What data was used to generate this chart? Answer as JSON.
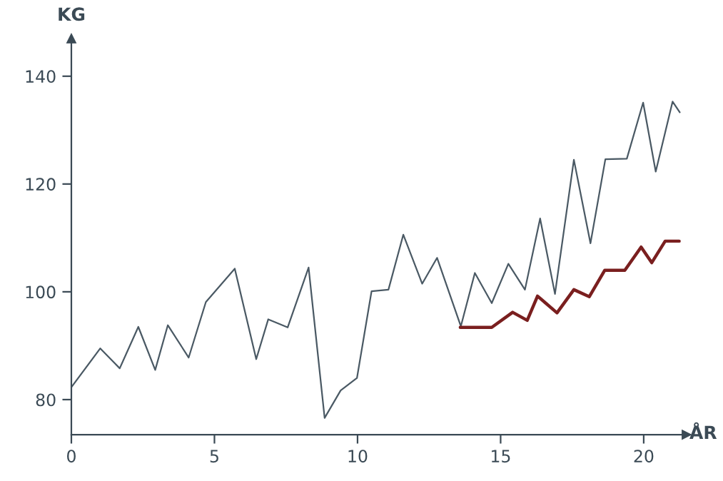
{
  "chart_data": {
    "type": "line",
    "xlabel": "ÅR",
    "ylabel": "KG",
    "series": [
      {
        "color": "#4a5964",
        "x": [
          0,
          1.01,
          1.69,
          2.34,
          2.93,
          3.37,
          4.1,
          4.7,
          5.71,
          6.46,
          6.88,
          7.56,
          8.29,
          8.85,
          9.41,
          9.98,
          10.49,
          11.08,
          11.6,
          12.26,
          12.78,
          13.61,
          14.1,
          14.69,
          15.27,
          15.85,
          16.38,
          16.9,
          17.56,
          18.14,
          18.66,
          19.41,
          19.98,
          20.42,
          21.01,
          21.26
        ],
        "values": [
          82.3,
          89.5,
          85.8,
          93.5,
          85.5,
          93.8,
          87.8,
          98.1,
          104.3,
          87.5,
          94.9,
          93.4,
          104.5,
          76.6,
          81.7,
          84.0,
          100.1,
          100.4,
          110.6,
          101.5,
          106.3,
          93.6,
          103.5,
          97.9,
          105.2,
          100.4,
          113.6,
          99.6,
          124.5,
          109.0,
          124.6,
          124.7,
          135.1,
          122.3,
          135.3,
          133.3
        ]
      },
      {
        "color": "#7a1f1f",
        "x": [
          13.59,
          14.69,
          15.42,
          15.93,
          16.29,
          16.97,
          17.56,
          18.1,
          18.64,
          19.34,
          19.91,
          20.28,
          20.75,
          21.24
        ],
        "values": [
          93.4,
          93.4,
          96.2,
          94.7,
          99.2,
          96.1,
          100.4,
          99.1,
          104.0,
          104.0,
          108.3,
          105.4,
          109.4,
          109.4
        ]
      }
    ],
    "xlim": [
      0,
      21.5
    ],
    "ylim": [
      73.5,
      147
    ],
    "xticks": [
      0,
      5,
      10,
      15,
      20
    ],
    "yticks": [
      80,
      100,
      120,
      140
    ],
    "grid": false,
    "legend": false,
    "marker": "none",
    "line_style": "solid"
  }
}
